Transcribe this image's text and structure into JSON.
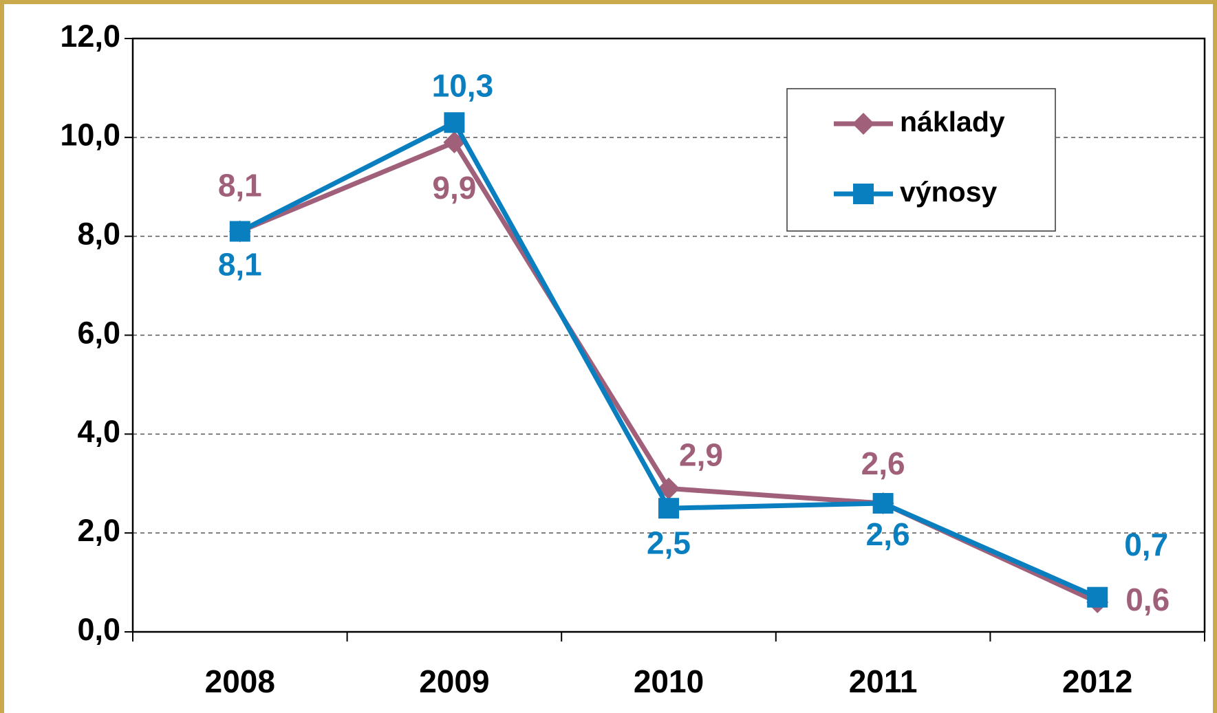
{
  "chart_data": {
    "type": "line",
    "categories": [
      "2008",
      "2009",
      "2010",
      "2011",
      "2012"
    ],
    "series": [
      {
        "name": "náklady",
        "color": "#a0607a",
        "marker": "diamond",
        "values": [
          8.1,
          9.9,
          2.9,
          2.6,
          0.6
        ],
        "value_labels": [
          "8,1",
          "9,9",
          "2,9",
          "2,6",
          "0,6"
        ]
      },
      {
        "name": "výnosy",
        "color": "#0a7fc0",
        "marker": "square",
        "values": [
          8.1,
          10.3,
          2.5,
          2.6,
          0.7
        ],
        "value_labels": [
          "8,1",
          "10,3",
          "2,5",
          "2,6",
          "0,7"
        ]
      }
    ],
    "ylim": [
      0,
      12
    ],
    "yticks": [
      {
        "value": 0,
        "label": "0,0"
      },
      {
        "value": 2,
        "label": "2,0"
      },
      {
        "value": 4,
        "label": "4,0"
      },
      {
        "value": 6,
        "label": "6,0"
      },
      {
        "value": 8,
        "label": "8,0"
      },
      {
        "value": 10,
        "label": "10,0"
      },
      {
        "value": 12,
        "label": "12,0"
      }
    ],
    "grid": true,
    "legend": "upper right"
  }
}
